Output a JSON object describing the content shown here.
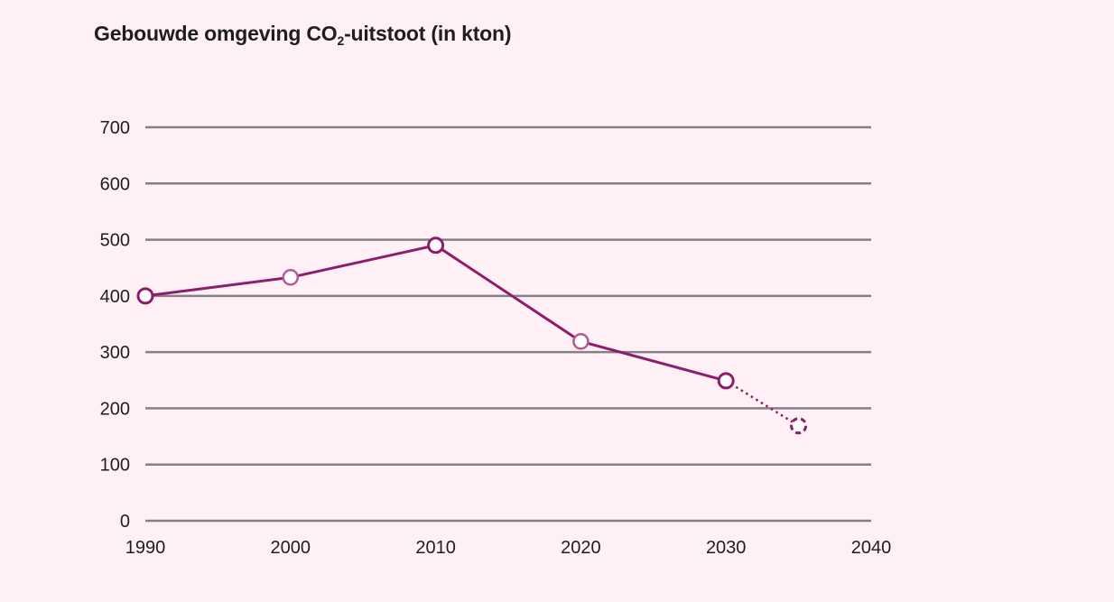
{
  "title": {
    "prefix": "Gebouwde omgeving CO",
    "subscript": "2",
    "suffix": "-uitstoot (in kton)"
  },
  "colors": {
    "line": "#8b1d6b",
    "marker_actual": "#8b1d6b",
    "marker_interpolated": "#b45a96",
    "grid": "#858085",
    "background": "#fff0f5"
  },
  "chart_data": {
    "type": "line",
    "title": "Gebouwde omgeving CO2-uitstoot (in kton)",
    "xlabel": "",
    "ylabel": "",
    "xlim": [
      1990,
      2040
    ],
    "ylim": [
      0,
      700
    ],
    "x_ticks": [
      1990,
      2000,
      2010,
      2020,
      2030,
      2040
    ],
    "y_ticks": [
      0,
      100,
      200,
      300,
      400,
      500,
      600,
      700
    ],
    "grid": "horizontal",
    "legend": "none",
    "series": [
      {
        "points": [
          {
            "x": 1990,
            "y": 400,
            "marker": "actual"
          },
          {
            "x": 2000,
            "y": 433,
            "marker": "interpolated"
          },
          {
            "x": 2010,
            "y": 490,
            "marker": "actual"
          },
          {
            "x": 2020,
            "y": 319,
            "marker": "interpolated"
          },
          {
            "x": 2030,
            "y": 249,
            "marker": "actual"
          }
        ],
        "line_style": "solid"
      },
      {
        "points": [
          {
            "x": 2030,
            "y": 249,
            "marker": "actual"
          },
          {
            "x": 2035,
            "y": 169,
            "marker": "target"
          }
        ],
        "line_style": "dotted"
      }
    ]
  }
}
